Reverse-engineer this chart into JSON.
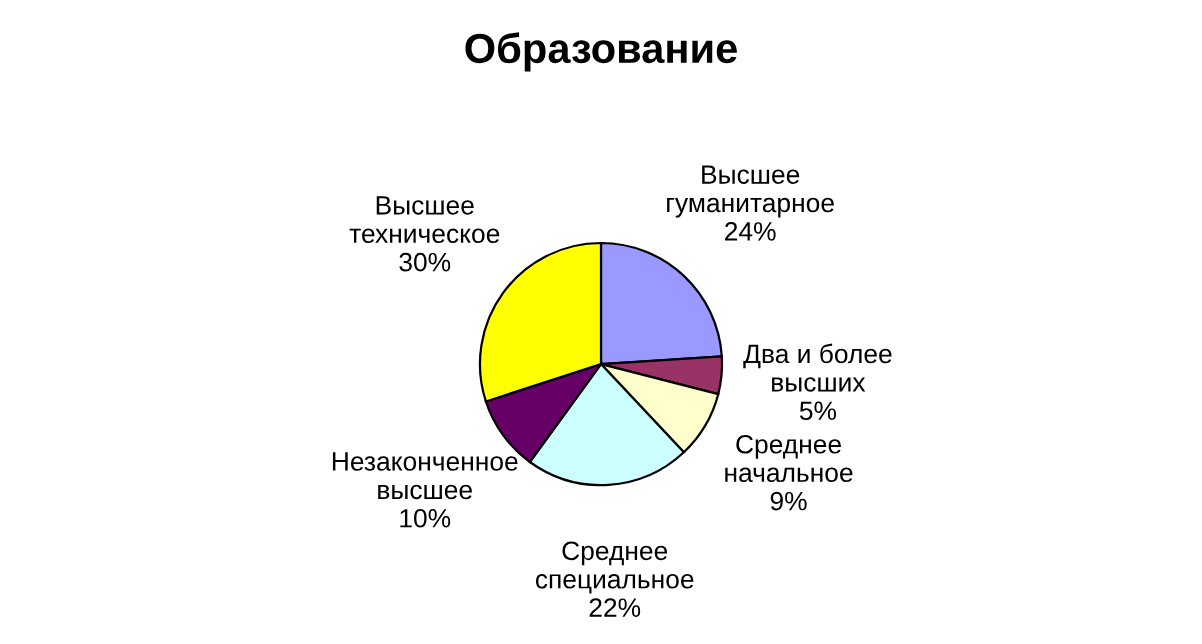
{
  "chart_data": {
    "type": "pie",
    "title": "Образование",
    "categories": [
      "Высшее\nгуманитарное",
      "Два и более\nвысших",
      "Среднее\nначальное",
      "Среднее\nспециальное",
      "Незаконченное\nвысшее",
      "Высшее\nтехническое"
    ],
    "values": [
      24,
      5,
      9,
      22,
      10,
      30
    ],
    "value_labels": [
      "24%",
      "5%",
      "9%",
      "22%",
      "10%",
      "30%"
    ],
    "colors": [
      "#9999ff",
      "#993366",
      "#ffffcc",
      "#ccffff",
      "#660066",
      "#ffff00"
    ],
    "legend": false
  }
}
